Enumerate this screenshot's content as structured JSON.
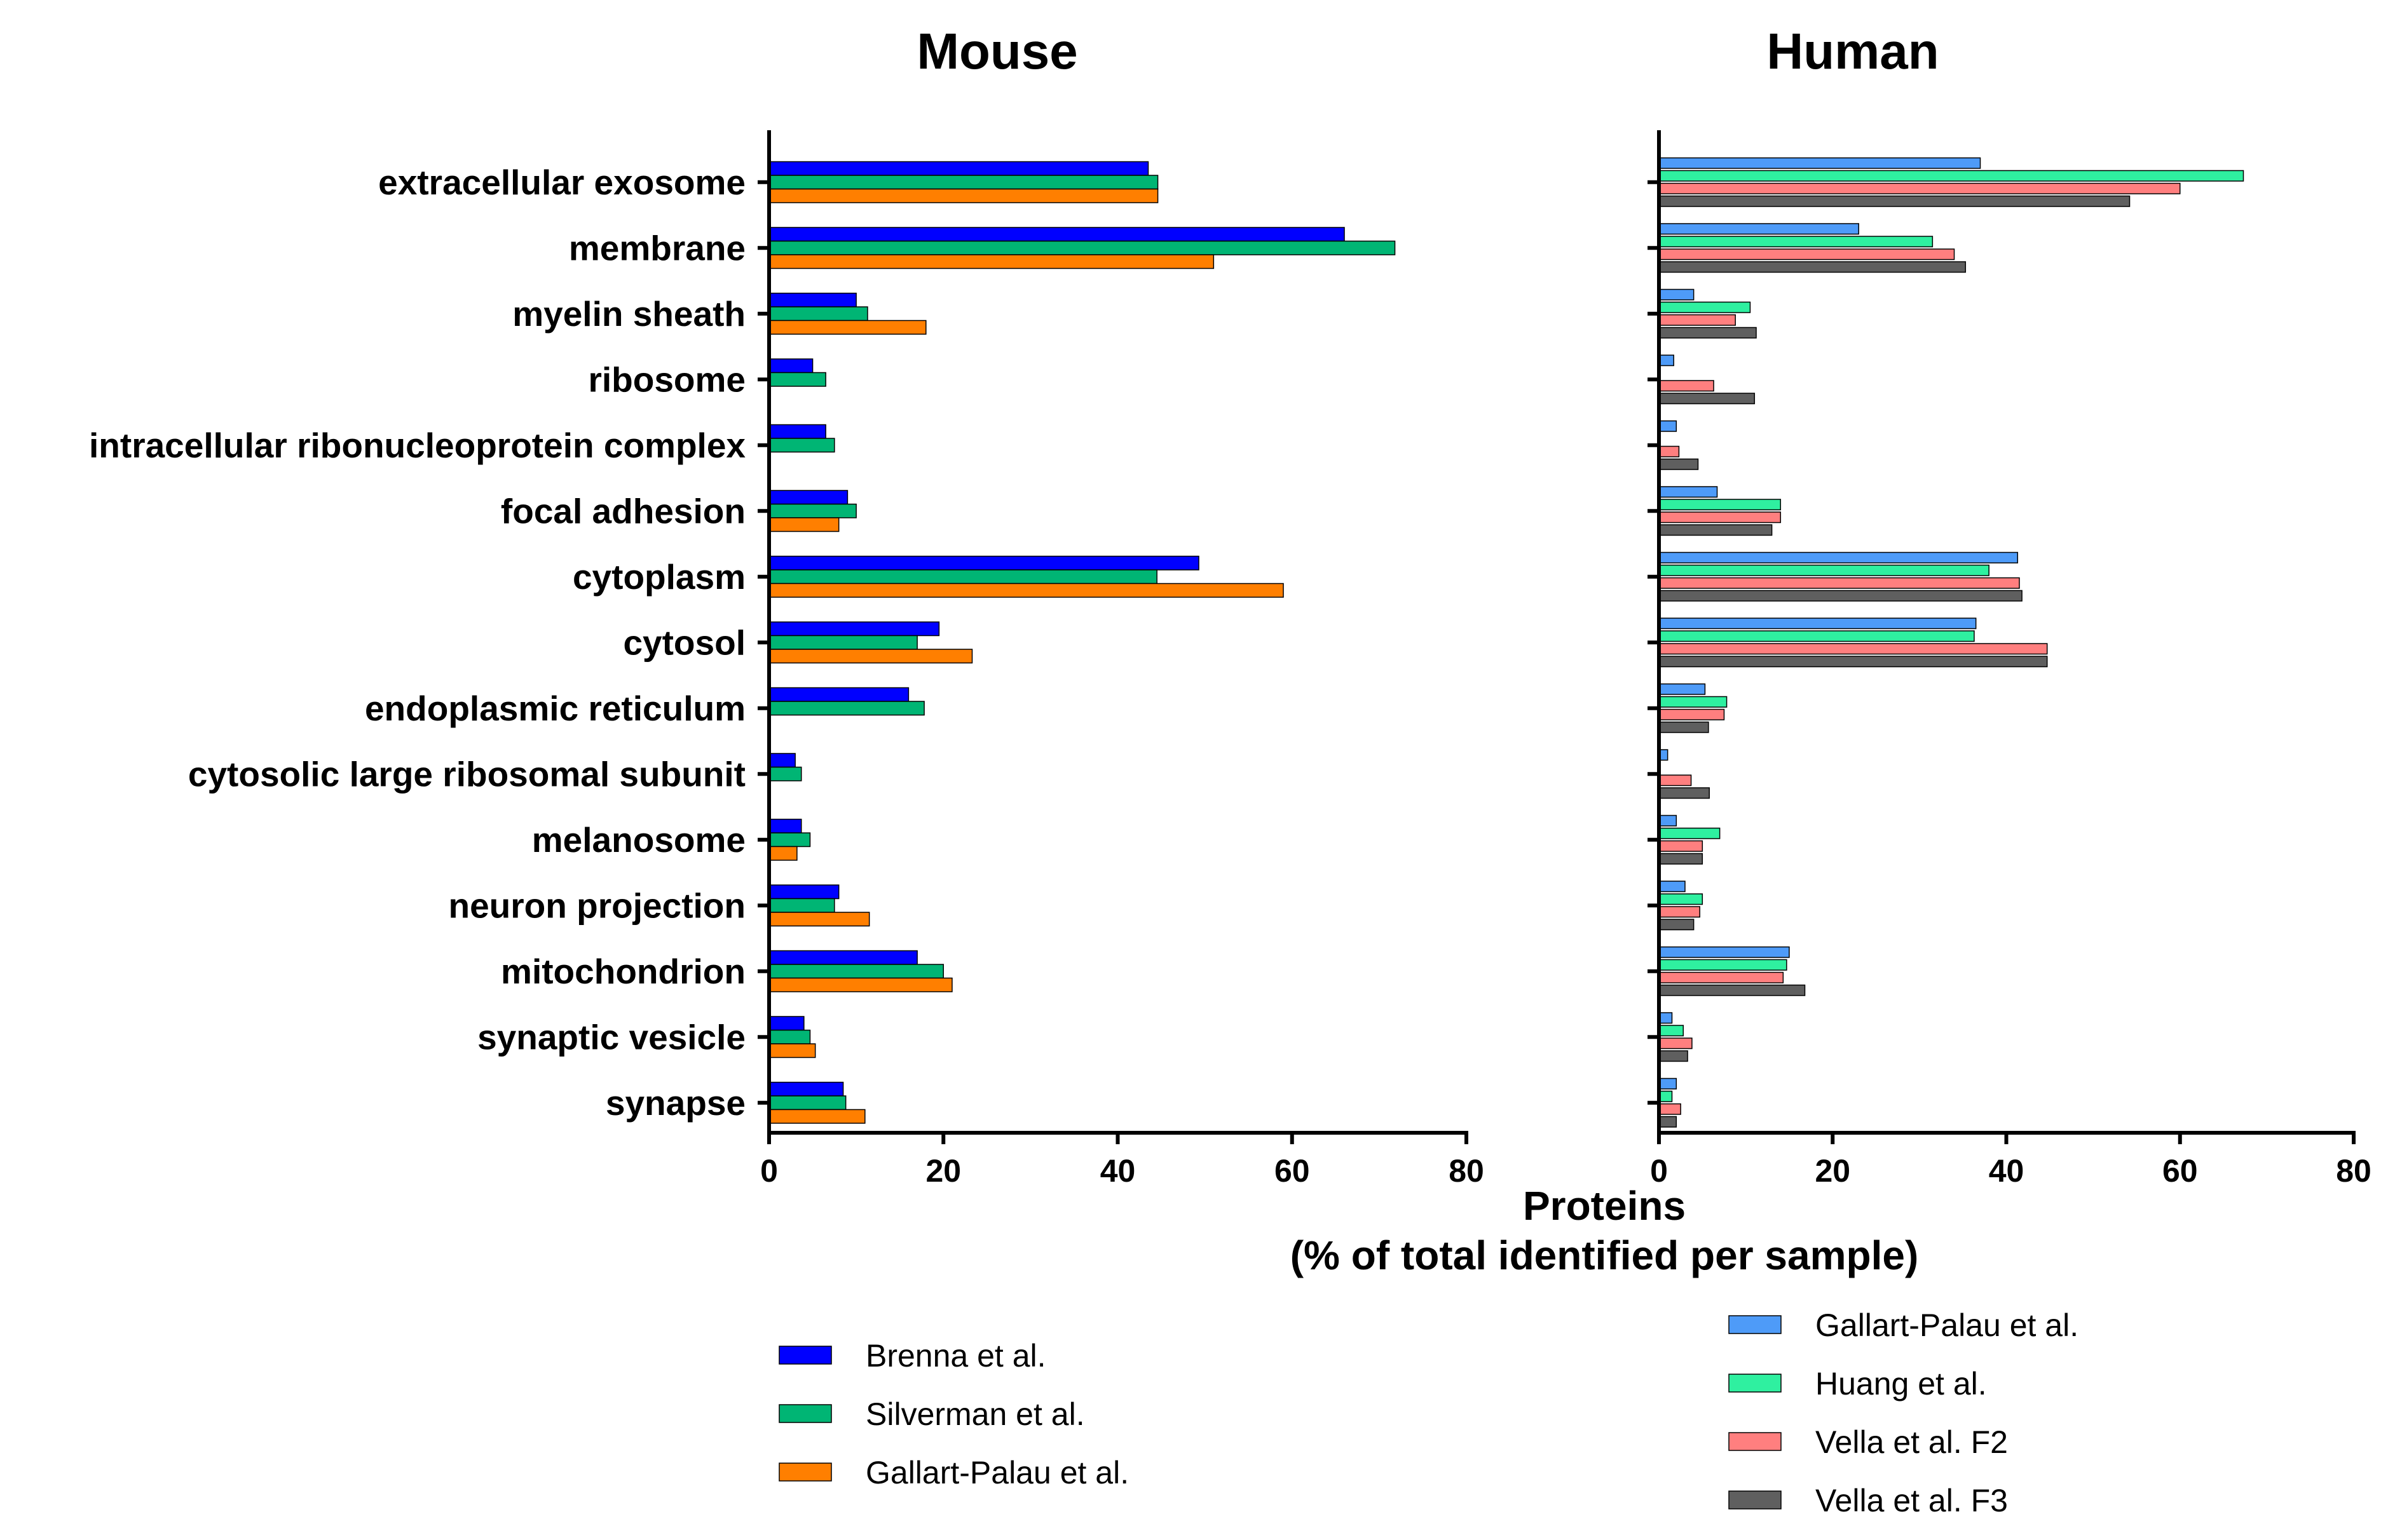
{
  "chart_data": {
    "type": "bar",
    "orientation": "horizontal",
    "xlabel_line1": "Proteins",
    "xlabel_line2": "(% of total identified per sample)",
    "categories": [
      "extracellular exosome",
      "membrane",
      "myelin sheath",
      "ribosome",
      "intracellular ribonucleoprotein complex",
      "focal adhesion",
      "cytoplasm",
      "cytosol",
      "endoplasmic reticulum",
      "cytosolic large ribosomal subunit",
      "melanosome",
      "neuron projection",
      "mitochondrion",
      "synaptic vesicle",
      "synapse"
    ],
    "panels": [
      {
        "title": "Mouse",
        "xlim": [
          0,
          80
        ],
        "ticks": [
          "0",
          "20",
          "40",
          "60",
          "80"
        ],
        "series": [
          {
            "name": "Brenna et al.",
            "color": "#0000ff",
            "values": [
              43.5,
              66,
              10,
              5,
              6.5,
              9,
              49.3,
              19.5,
              16,
              3,
              3.7,
              8,
              17,
              4,
              8.5
            ]
          },
          {
            "name": "Silverman et al.",
            "color": "#00b574",
            "values": [
              44.6,
              71.8,
              11.3,
              6.5,
              7.5,
              10,
              44.5,
              17,
              17.8,
              3.7,
              4.7,
              7.5,
              20,
              4.7,
              8.8
            ]
          },
          {
            "name": "Gallart-Palau et al.",
            "color": "#ff7f00",
            "values": [
              44.6,
              51,
              18,
              null,
              null,
              8,
              59,
              23.3,
              null,
              null,
              3.2,
              11.5,
              21,
              5.3,
              11
            ]
          }
        ]
      },
      {
        "title": "Human",
        "xlim": [
          0,
          80
        ],
        "ticks": [
          "0",
          "20",
          "40",
          "60",
          "80"
        ],
        "series": [
          {
            "name": "Gallart-Palau et al.",
            "color": "#4e9bf8",
            "values": [
              37,
              23,
              4,
              1.7,
              2,
              6.7,
              41.3,
              36.5,
              5.3,
              1,
              2,
              3,
              15,
              1.5,
              2
            ]
          },
          {
            "name": "Huang et al.",
            "color": "#2ff0a0",
            "values": [
              67.3,
              31.5,
              10.5,
              null,
              null,
              14,
              38,
              36.3,
              7.8,
              null,
              7,
              5,
              14.7,
              2.8,
              1.5
            ]
          },
          {
            "name": "Vella et al. F2",
            "color": "#ff7f7f",
            "values": [
              60,
              34,
              8.8,
              6.3,
              2.3,
              14,
              41.5,
              44.7,
              7.5,
              3.7,
              5,
              4.7,
              14.3,
              3.8,
              2.5
            ]
          },
          {
            "name": "Vella et al. F3",
            "color": "#5f5f5f",
            "values": [
              54.2,
              35.3,
              11.2,
              11,
              4.5,
              13,
              41.8,
              44.7,
              5.7,
              5.8,
              5,
              4,
              16.8,
              3.3,
              2
            ]
          }
        ]
      }
    ]
  }
}
